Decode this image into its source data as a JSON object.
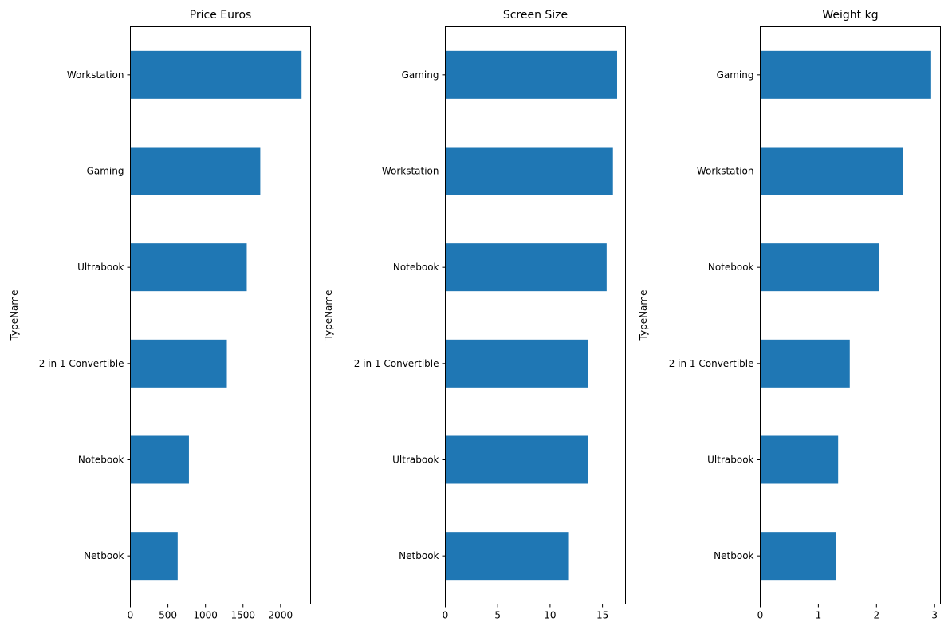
{
  "chart_data": [
    {
      "type": "bar",
      "orientation": "horizontal",
      "title": "Price Euros",
      "xlabel": "",
      "ylabel": "TypeName",
      "categories": [
        "Netbook",
        "Notebook",
        "2 in 1 Convertible",
        "Ultrabook",
        "Gaming",
        "Workstation"
      ],
      "values": [
        630,
        780,
        1285,
        1550,
        1730,
        2280
      ],
      "xlim": [
        0,
        2400
      ],
      "xticks": [
        0,
        500,
        1000,
        1500,
        2000
      ],
      "xtick_labels": [
        "0",
        "500",
        "1000",
        "1500",
        "2000"
      ],
      "color": "#1f77b4",
      "grid": false
    },
    {
      "type": "bar",
      "orientation": "horizontal",
      "title": "Screen Size",
      "xlabel": "",
      "ylabel": "TypeName",
      "categories": [
        "Netbook",
        "Ultrabook",
        "2 in 1 Convertible",
        "Notebook",
        "Workstation",
        "Gaming"
      ],
      "values": [
        11.8,
        13.6,
        13.6,
        15.4,
        16.0,
        16.4
      ],
      "xlim": [
        0,
        17.2
      ],
      "xticks": [
        0,
        5,
        10,
        15
      ],
      "xtick_labels": [
        "0",
        "5",
        "10",
        "15"
      ],
      "color": "#1f77b4",
      "grid": false
    },
    {
      "type": "bar",
      "orientation": "horizontal",
      "title": "Weight kg",
      "xlabel": "",
      "ylabel": "TypeName",
      "categories": [
        "Netbook",
        "Ultrabook",
        "2 in 1 Convertible",
        "Notebook",
        "Workstation",
        "Gaming"
      ],
      "values": [
        1.31,
        1.34,
        1.54,
        2.05,
        2.46,
        2.94
      ],
      "xlim": [
        0,
        3.1
      ],
      "xticks": [
        0,
        1,
        2,
        3
      ],
      "xtick_labels": [
        "0",
        "1",
        "2",
        "3"
      ],
      "color": "#1f77b4",
      "grid": false
    }
  ]
}
